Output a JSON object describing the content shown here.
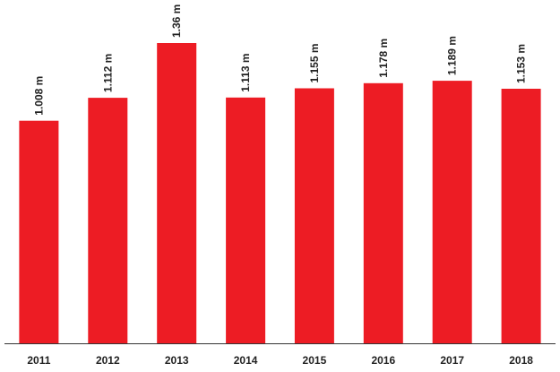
{
  "chart_data": {
    "type": "bar",
    "categories": [
      "2011",
      "2012",
      "2013",
      "2014",
      "2015",
      "2016",
      "2017",
      "2018"
    ],
    "values": [
      1.008,
      1.112,
      1.36,
      1.113,
      1.155,
      1.178,
      1.189,
      1.153
    ],
    "data_labels": [
      "1.008 m",
      "1.112 m",
      "1.36 m",
      "1.113 m",
      "1.155 m",
      "1.178 m",
      "1.189 m",
      "1.153 m"
    ],
    "title": "",
    "xlabel": "",
    "ylabel": "",
    "ylim": [
      0,
      1.36
    ],
    "grid": false,
    "legend": "none",
    "colors": {
      "bar": "#ed1c24",
      "axis": "#333333",
      "text": "#222222"
    }
  }
}
